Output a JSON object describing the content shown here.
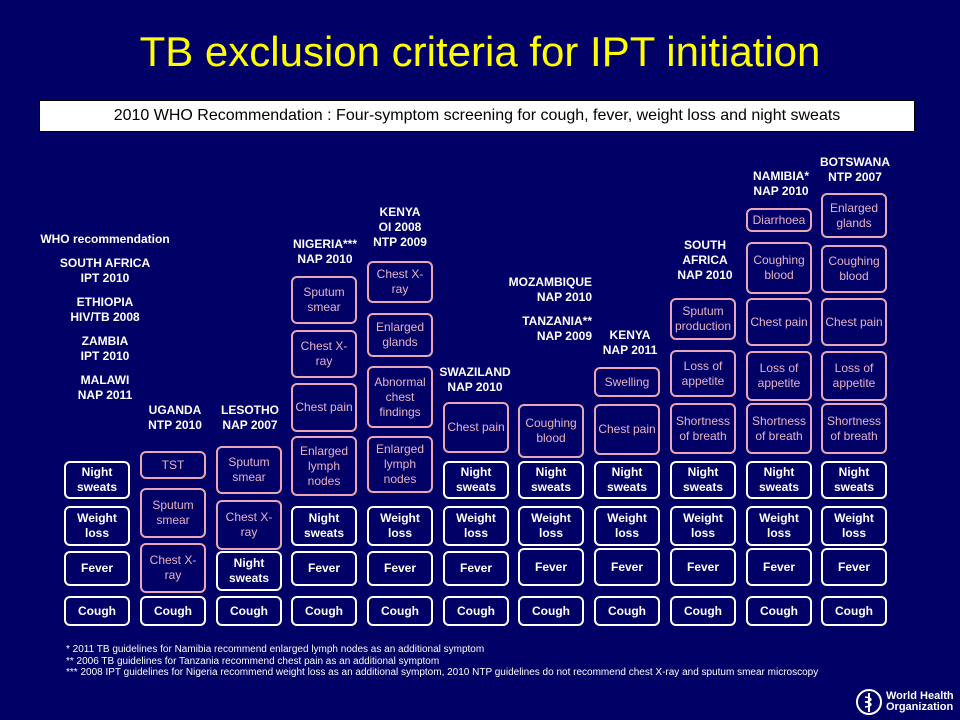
{
  "title": "TB exclusion criteria for IPT initiation",
  "recommendation": "2010 WHO Recommendation : Four-symptom screening for cough, fever, weight loss and night sweats",
  "columns": [
    {
      "id": "who",
      "label": [
        "WHO recommendation",
        "",
        "SOUTH AFRICA",
        "IPT 2010",
        "",
        "ETHIOPIA",
        "HIV/TB 2008",
        "",
        "ZAMBIA",
        "IPT 2010",
        "",
        "MALAWI",
        "NAP 2011"
      ],
      "boxes": [
        {
          "text": "Night sweats",
          "style": "white"
        },
        {
          "text": "Weight loss",
          "style": "white"
        },
        {
          "text": "Fever",
          "style": "white"
        },
        {
          "text": "Cough",
          "style": "white"
        }
      ]
    },
    {
      "id": "uganda",
      "label": [
        "UGANDA",
        "NTP 2010"
      ],
      "boxes": [
        {
          "text": "TST",
          "style": "pink"
        },
        {
          "text": "Sputum smear",
          "style": "pink"
        },
        {
          "text": "Chest X-ray",
          "style": "pink"
        },
        {
          "text": "Cough",
          "style": "white"
        }
      ]
    },
    {
      "id": "lesotho",
      "label": [
        "LESOTHO",
        "NAP 2007"
      ],
      "boxes": [
        {
          "text": "Sputum smear",
          "style": "pink"
        },
        {
          "text": "Chest X-ray",
          "style": "pink"
        },
        {
          "text": "Night sweats",
          "style": "white"
        },
        {
          "text": "Cough",
          "style": "white"
        }
      ]
    },
    {
      "id": "nigeria",
      "label": [
        "NIGERIA***",
        "NAP 2010"
      ],
      "boxes": [
        {
          "text": "Sputum smear",
          "style": "pink"
        },
        {
          "text": "Chest X-ray",
          "style": "pink"
        },
        {
          "text": "Chest pain",
          "style": "pink"
        },
        {
          "text": "Enlarged lymph nodes",
          "style": "pink"
        },
        {
          "text": "Night sweats",
          "style": "white"
        },
        {
          "text": "Fever",
          "style": "white"
        },
        {
          "text": "Cough",
          "style": "white"
        }
      ]
    },
    {
      "id": "kenya1",
      "label": [
        "KENYA",
        "OI 2008",
        "NTP 2009"
      ],
      "boxes": [
        {
          "text": "Chest X-ray",
          "style": "pink"
        },
        {
          "text": "Enlarged glands",
          "style": "pink"
        },
        {
          "text": "Abnormal chest findings",
          "style": "pink"
        },
        {
          "text": "Enlarged lymph nodes",
          "style": "pink"
        },
        {
          "text": "Weight loss",
          "style": "white"
        },
        {
          "text": "Fever",
          "style": "white"
        },
        {
          "text": "Cough",
          "style": "white"
        }
      ]
    },
    {
      "id": "swaziland",
      "label": [
        "SWAZILAND",
        "NAP 2010"
      ],
      "boxes": [
        {
          "text": "Chest pain",
          "style": "pink"
        },
        {
          "text": "Night sweats",
          "style": "white"
        },
        {
          "text": "Weight loss",
          "style": "white"
        },
        {
          "text": "Fever",
          "style": "white"
        },
        {
          "text": "Cough",
          "style": "white"
        }
      ]
    },
    {
      "id": "tanzania",
      "label": [
        "MOZAMBIQUE",
        "NAP 2010",
        "",
        "TANZANIA**",
        "NAP 2009"
      ],
      "boxes": [
        {
          "text": "Coughing blood",
          "style": "pink"
        },
        {
          "text": "Night sweats",
          "style": "white"
        },
        {
          "text": "Weight loss",
          "style": "white"
        },
        {
          "text": "Fever",
          "style": "white"
        },
        {
          "text": "Cough",
          "style": "white"
        }
      ]
    },
    {
      "id": "kenya2",
      "label": [
        "KENYA",
        "NAP 2011"
      ],
      "boxes": [
        {
          "text": "Swelling",
          "style": "pink"
        },
        {
          "text": "Chest pain",
          "style": "pink"
        },
        {
          "text": "Night sweats",
          "style": "white"
        },
        {
          "text": "Weight loss",
          "style": "white"
        },
        {
          "text": "Fever",
          "style": "white"
        },
        {
          "text": "Cough",
          "style": "white"
        }
      ]
    },
    {
      "id": "southafrica",
      "label": [
        "SOUTH",
        "AFRICA",
        "NAP 2010"
      ],
      "boxes": [
        {
          "text": "Sputum production",
          "style": "pink"
        },
        {
          "text": "Loss of appetite",
          "style": "pink"
        },
        {
          "text": "Shortness of breath",
          "style": "pink"
        },
        {
          "text": "Night sweats",
          "style": "white"
        },
        {
          "text": "Weight loss",
          "style": "white"
        },
        {
          "text": "Fever",
          "style": "white"
        },
        {
          "text": "Cough",
          "style": "white"
        }
      ]
    },
    {
      "id": "namibia",
      "label": [
        "NAMIBIA*",
        "NAP 2010"
      ],
      "boxes": [
        {
          "text": "Diarrhoea",
          "style": "pink"
        },
        {
          "text": "Coughing blood",
          "style": "pink"
        },
        {
          "text": "Chest pain",
          "style": "pink"
        },
        {
          "text": "Loss of appetite",
          "style": "pink"
        },
        {
          "text": "Shortness of breath",
          "style": "pink"
        },
        {
          "text": "Night sweats",
          "style": "white"
        },
        {
          "text": "Weight loss",
          "style": "white"
        },
        {
          "text": "Fever",
          "style": "white"
        },
        {
          "text": "Cough",
          "style": "white"
        }
      ]
    },
    {
      "id": "botswana",
      "label": [
        "BOTSWANA",
        "NTP 2007"
      ],
      "boxes": [
        {
          "text": "Enlarged glands",
          "style": "pink"
        },
        {
          "text": "Coughing blood",
          "style": "pink"
        },
        {
          "text": "Chest pain",
          "style": "pink"
        },
        {
          "text": "Loss of appetite",
          "style": "pink"
        },
        {
          "text": "Shortness of breath",
          "style": "pink"
        },
        {
          "text": "Night sweats",
          "style": "white"
        },
        {
          "text": "Weight loss",
          "style": "white"
        },
        {
          "text": "Fever",
          "style": "white"
        },
        {
          "text": "Cough",
          "style": "white"
        }
      ]
    }
  ],
  "footnotes": [
    "* 2011 TB guidelines for Namibia recommend enlarged lymph nodes as an additional symptom",
    "** 2006 TB guidelines for Tanzania recommend chest pain as an additional symptom",
    "*** 2008 IPT guidelines for Nigeria recommend weight loss as an additional symptom, 2010 NTP guidelines do not recommend chest X-ray and sputum smear microscopy"
  ],
  "logo": {
    "line1": "World Health",
    "line2": "Organization"
  },
  "colors": {
    "background": "#000066",
    "title": "#ffff00",
    "pink": "#e8a6b6"
  }
}
